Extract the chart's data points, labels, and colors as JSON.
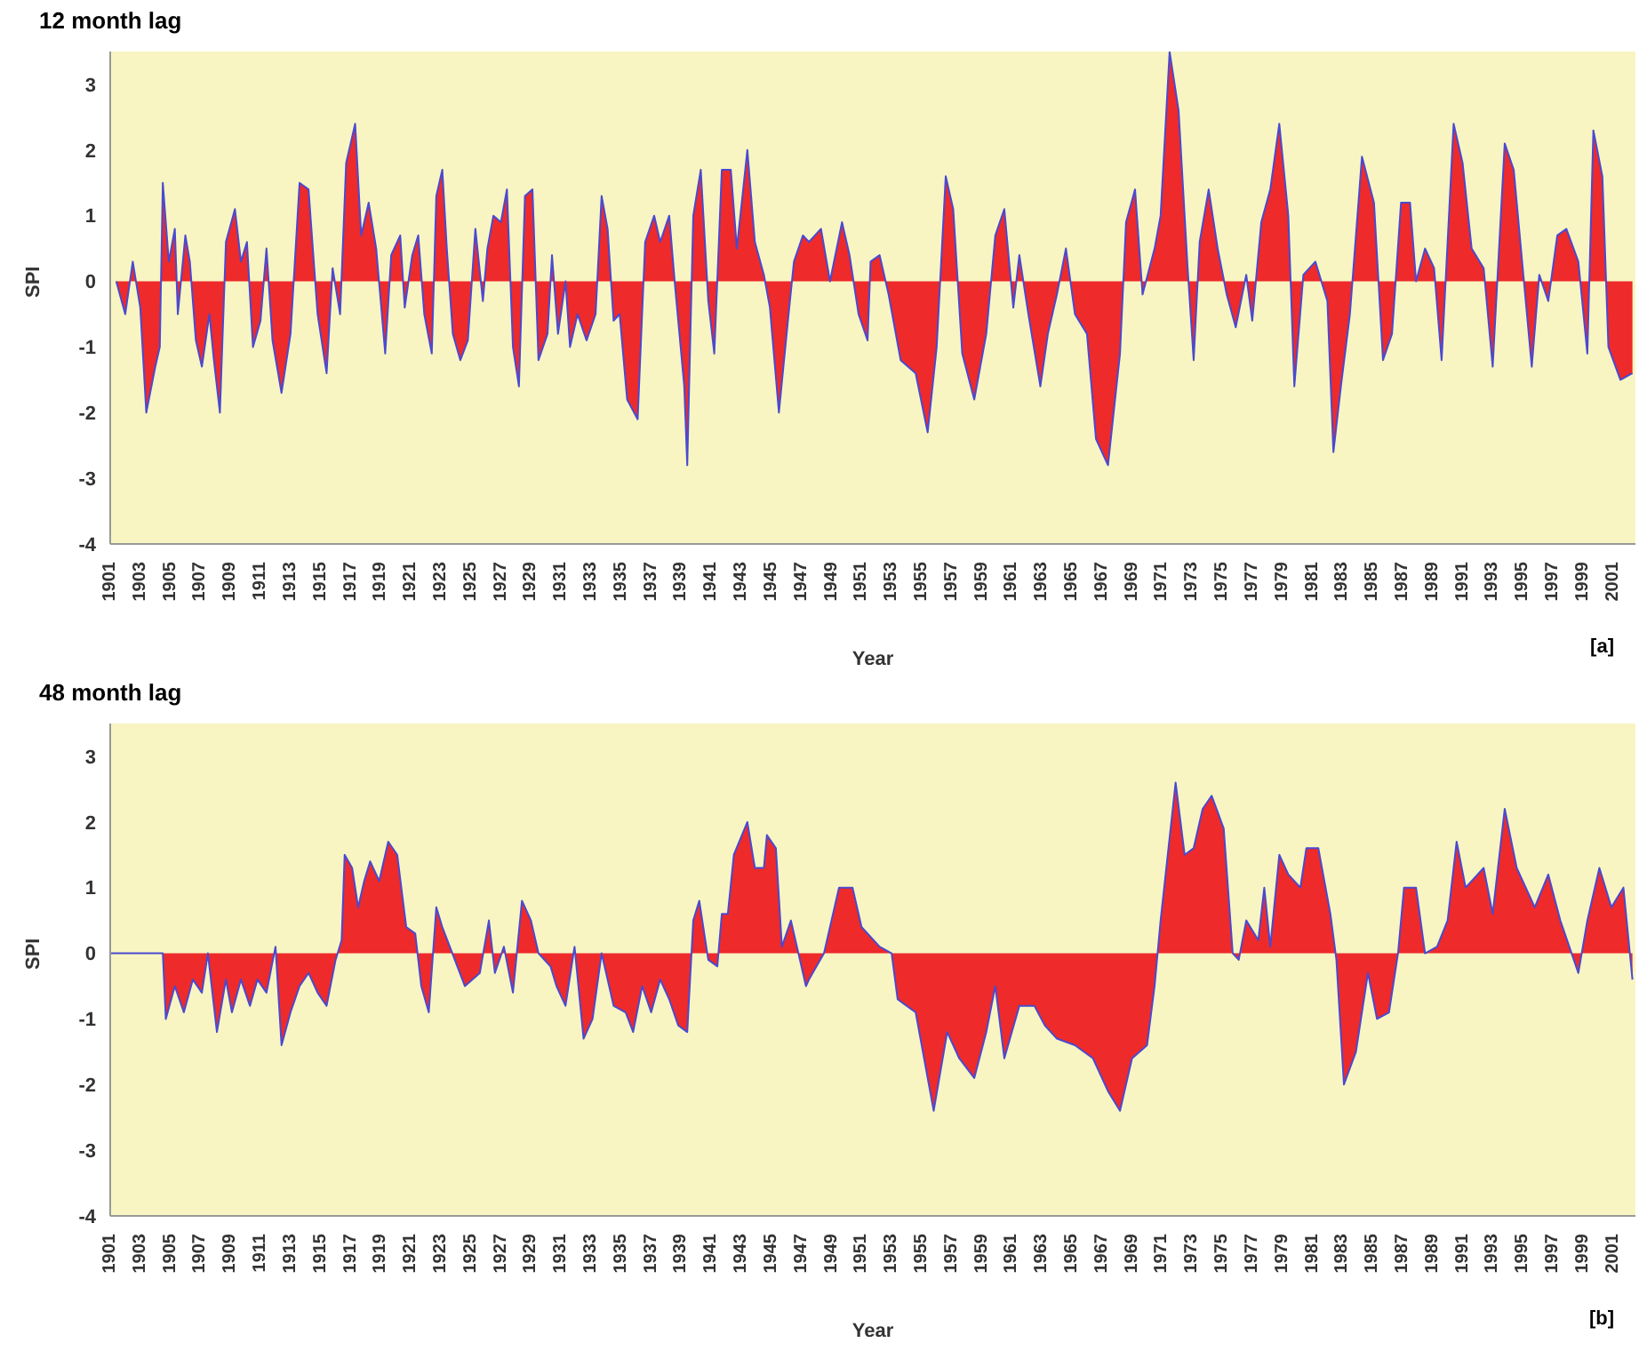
{
  "chart_data": [
    {
      "type": "area",
      "title": "12 month lag",
      "xlabel": "Year",
      "ylabel": "SPI",
      "color": "#ee2a2a",
      "annotations": [
        "[a]"
      ],
      "xlim": [
        1901,
        2002.5
      ],
      "ylim": [
        -4,
        3.5
      ],
      "yticks": [
        -4,
        -3,
        -2,
        -1,
        0,
        1,
        2,
        3
      ],
      "xticks": [
        1901,
        1903,
        1905,
        1907,
        1909,
        1911,
        1913,
        1915,
        1917,
        1919,
        1921,
        1923,
        1925,
        1927,
        1929,
        1931,
        1933,
        1935,
        1937,
        1939,
        1941,
        1943,
        1945,
        1947,
        1949,
        1951,
        1953,
        1955,
        1957,
        1959,
        1961,
        1963,
        1965,
        1967,
        1969,
        1971,
        1973,
        1975,
        1977,
        1979,
        1981,
        1983,
        1985,
        1987,
        1989,
        1991,
        1993,
        1995,
        1997,
        1999,
        2001
      ],
      "x": [
        1901.4,
        1902.0,
        1902.5,
        1903.0,
        1903.4,
        1904.0,
        1904.3,
        1904.5,
        1904.9,
        1905.3,
        1905.5,
        1906.0,
        1906.3,
        1906.7,
        1907.1,
        1907.6,
        1907.9,
        1908.3,
        1908.7,
        1909.3,
        1909.7,
        1910.1,
        1910.5,
        1911.0,
        1911.4,
        1911.8,
        1912.4,
        1913.0,
        1913.6,
        1914.2,
        1914.8,
        1915.4,
        1915.8,
        1916.3,
        1916.7,
        1917.3,
        1917.7,
        1918.2,
        1918.7,
        1919.3,
        1919.7,
        1920.3,
        1920.6,
        1921.1,
        1921.5,
        1921.9,
        1922.4,
        1922.7,
        1923.1,
        1923.4,
        1923.8,
        1924.3,
        1924.8,
        1925.3,
        1925.8,
        1926.1,
        1926.5,
        1927.0,
        1927.4,
        1927.8,
        1928.2,
        1928.6,
        1929.1,
        1929.5,
        1930.1,
        1930.4,
        1930.8,
        1931.3,
        1931.6,
        1932.1,
        1932.7,
        1933.3,
        1933.7,
        1934.1,
        1934.5,
        1934.9,
        1935.4,
        1936.1,
        1936.6,
        1937.2,
        1937.6,
        1938.2,
        1938.6,
        1939.2,
        1939.4,
        1939.8,
        1940.3,
        1940.8,
        1941.2,
        1941.7,
        1942.3,
        1942.7,
        1943.4,
        1943.9,
        1944.5,
        1944.9,
        1945.5,
        1946.1,
        1946.5,
        1947.1,
        1947.5,
        1948.3,
        1948.9,
        1949.7,
        1950.2,
        1950.8,
        1951.4,
        1951.6,
        1952.2,
        1952.8,
        1953.6,
        1954.6,
        1955.4,
        1956.0,
        1956.6,
        1957.1,
        1957.7,
        1958.5,
        1959.3,
        1959.9,
        1960.5,
        1961.1,
        1961.5,
        1962.1,
        1962.9,
        1963.4,
        1964.0,
        1964.6,
        1965.2,
        1966.0,
        1966.6,
        1967.4,
        1968.2,
        1968.6,
        1969.2,
        1969.7,
        1970.5,
        1970.9,
        1971.5,
        1972.1,
        1972.7,
        1973.1,
        1973.5,
        1974.1,
        1974.7,
        1975.3,
        1975.9,
        1976.6,
        1977.0,
        1977.6,
        1978.2,
        1978.8,
        1979.4,
        1979.8,
        1980.4,
        1981.2,
        1982.0,
        1982.4,
        1982.9,
        1983.5,
        1984.3,
        1985.1,
        1985.7,
        1986.3,
        1986.9,
        1987.5,
        1987.9,
        1988.5,
        1989.1,
        1989.6,
        1990.4,
        1991.0,
        1991.6,
        1992.4,
        1993.0,
        1993.8,
        1994.4,
        1995.0,
        1995.6,
        1996.1,
        1996.7,
        1997.3,
        1997.9,
        1998.7,
        1999.3,
        1999.7,
        2000.3,
        2000.7,
        2001.5,
        2002.3
      ],
      "values": [
        0,
        -0.5,
        0.3,
        -0.4,
        -2.0,
        -1.3,
        -1.0,
        1.5,
        0.3,
        0.8,
        -0.5,
        0.7,
        0.3,
        -0.9,
        -1.3,
        -0.5,
        -1.2,
        -2.0,
        0.6,
        1.1,
        0.3,
        0.6,
        -1.0,
        -0.6,
        0.5,
        -0.9,
        -1.7,
        -0.8,
        1.5,
        1.4,
        -0.5,
        -1.4,
        0.2,
        -0.5,
        1.8,
        2.4,
        0.7,
        1.2,
        0.5,
        -1.1,
        0.4,
        0.7,
        -0.4,
        0.4,
        0.7,
        -0.5,
        -1.1,
        1.3,
        1.7,
        0.5,
        -0.8,
        -1.2,
        -0.9,
        0.8,
        -0.3,
        0.5,
        1.0,
        0.9,
        1.4,
        -1.0,
        -1.6,
        1.3,
        1.4,
        -1.2,
        -0.8,
        0.4,
        -0.8,
        0,
        -1.0,
        -0.5,
        -0.9,
        -0.5,
        1.3,
        0.8,
        -0.6,
        -0.5,
        -1.8,
        -2.1,
        0.6,
        1.0,
        0.6,
        1.0,
        -0.1,
        -1.6,
        -2.8,
        1.0,
        1.7,
        -0.3,
        -1.1,
        1.7,
        1.7,
        0.5,
        2.0,
        0.6,
        0.1,
        -0.4,
        -2.0,
        -0.6,
        0.3,
        0.7,
        0.6,
        0.8,
        0,
        0.9,
        0.4,
        -0.5,
        -0.9,
        0.3,
        0.4,
        -0.2,
        -1.2,
        -1.4,
        -2.3,
        -1.0,
        1.6,
        1.1,
        -1.1,
        -1.8,
        -0.8,
        0.7,
        1.1,
        -0.4,
        0.4,
        -0.5,
        -1.6,
        -0.8,
        -0.2,
        0.5,
        -0.5,
        -0.8,
        -2.4,
        -2.8,
        -1.1,
        0.9,
        1.4,
        -0.2,
        0.5,
        1.0,
        3.5,
        2.6,
        0.2,
        -1.2,
        0.6,
        1.4,
        0.5,
        -0.2,
        -0.7,
        0.1,
        -0.6,
        0.9,
        1.4,
        2.4,
        1.0,
        -1.6,
        0.1,
        0.3,
        -0.3,
        -2.6,
        -1.6,
        -0.5,
        1.9,
        1.2,
        -1.2,
        -0.8,
        1.2,
        1.2,
        0,
        0.5,
        0.2,
        -1.2,
        2.4,
        1.8,
        0.5,
        0.2,
        -1.3,
        2.1,
        1.7,
        0.2,
        -1.3,
        0.1,
        -0.3,
        0.7,
        0.8,
        0.3,
        -1.1,
        2.3,
        1.6,
        -1.0,
        -1.5,
        -1.4
      ]
    },
    {
      "type": "area",
      "title": "48 month lag",
      "xlabel": "Year",
      "ylabel": "SPI",
      "color": "#ee2a2a",
      "annotations": [
        "[b]"
      ],
      "xlim": [
        1901,
        2002.5
      ],
      "ylim": [
        -4,
        3.5
      ],
      "yticks": [
        -4,
        -3,
        -2,
        -1,
        0,
        1,
        2,
        3
      ],
      "xticks": [
        1901,
        1903,
        1905,
        1907,
        1909,
        1911,
        1913,
        1915,
        1917,
        1919,
        1921,
        1923,
        1925,
        1927,
        1929,
        1931,
        1933,
        1935,
        1937,
        1939,
        1941,
        1943,
        1945,
        1947,
        1949,
        1951,
        1953,
        1955,
        1957,
        1959,
        1961,
        1963,
        1965,
        1967,
        1969,
        1971,
        1973,
        1975,
        1977,
        1979,
        1981,
        1983,
        1985,
        1987,
        1989,
        1991,
        1993,
        1995,
        1997,
        1999,
        2001
      ],
      "x": [
        1901.0,
        1904.5,
        1904.7,
        1905.3,
        1905.9,
        1906.5,
        1907.1,
        1907.5,
        1908.1,
        1908.7,
        1909.1,
        1909.7,
        1910.3,
        1910.8,
        1911.4,
        1912.0,
        1912.4,
        1913.0,
        1913.6,
        1914.2,
        1914.8,
        1915.4,
        1916.0,
        1916.4,
        1916.6,
        1917.1,
        1917.5,
        1917.9,
        1918.3,
        1918.9,
        1919.5,
        1920.1,
        1920.7,
        1921.3,
        1921.7,
        1922.2,
        1922.7,
        1923.1,
        1923.6,
        1924.6,
        1925.6,
        1926.2,
        1926.6,
        1927.2,
        1927.8,
        1928.4,
        1929.0,
        1929.5,
        1930.3,
        1930.7,
        1931.3,
        1931.9,
        1932.5,
        1933.1,
        1933.7,
        1934.5,
        1935.3,
        1935.8,
        1936.4,
        1937.0,
        1937.6,
        1938.2,
        1938.8,
        1939.4,
        1939.8,
        1940.2,
        1940.8,
        1941.4,
        1941.7,
        1942.1,
        1942.5,
        1943.4,
        1943.9,
        1944.5,
        1944.7,
        1945.3,
        1945.7,
        1946.3,
        1946.9,
        1947.3,
        1947.5,
        1948.5,
        1949.5,
        1950.4,
        1951.0,
        1952.2,
        1953.0,
        1953.4,
        1954.6,
        1955.8,
        1956.7,
        1957.5,
        1958.5,
        1959.3,
        1959.9,
        1960.5,
        1961.5,
        1962.5,
        1963.2,
        1964.0,
        1965.2,
        1966.4,
        1967.4,
        1968.2,
        1969.0,
        1970.0,
        1970.5,
        1970.9,
        1971.9,
        1972.5,
        1973.1,
        1973.7,
        1974.3,
        1975.1,
        1975.7,
        1976.1,
        1976.6,
        1977.4,
        1977.8,
        1978.2,
        1978.8,
        1979.4,
        1980.2,
        1980.6,
        1981.4,
        1982.2,
        1982.6,
        1983.1,
        1983.9,
        1984.7,
        1985.3,
        1986.1,
        1986.7,
        1987.1,
        1987.9,
        1988.5,
        1989.3,
        1990.0,
        1990.6,
        1991.2,
        1992.4,
        1993.0,
        1993.8,
        1994.6,
        1995.8,
        1996.7,
        1997.5,
        1998.7,
        1999.3,
        2000.1,
        2000.9,
        2001.7,
        2002.3
      ],
      "values": [
        0,
        0,
        -1.0,
        -0.5,
        -0.9,
        -0.4,
        -0.6,
        0,
        -1.2,
        -0.4,
        -0.9,
        -0.4,
        -0.8,
        -0.4,
        -0.6,
        0.1,
        -1.4,
        -0.9,
        -0.5,
        -0.3,
        -0.6,
        -0.8,
        -0.1,
        0.2,
        1.5,
        1.3,
        0.7,
        1.1,
        1.4,
        1.1,
        1.7,
        1.5,
        0.4,
        0.3,
        -0.5,
        -0.9,
        0.7,
        0.4,
        0.1,
        -0.5,
        -0.3,
        0.5,
        -0.3,
        0.1,
        -0.6,
        0.8,
        0.5,
        0,
        -0.2,
        -0.5,
        -0.8,
        0.1,
        -1.3,
        -1.0,
        0,
        -0.8,
        -0.9,
        -1.2,
        -0.5,
        -0.9,
        -0.4,
        -0.7,
        -1.1,
        -1.2,
        0.5,
        0.8,
        -0.1,
        -0.2,
        0.6,
        0.6,
        1.5,
        2.0,
        1.3,
        1.3,
        1.8,
        1.6,
        0.1,
        0.5,
        -0.1,
        -0.5,
        -0.4,
        0,
        1.0,
        1.0,
        0.4,
        0.1,
        0,
        -0.7,
        -0.9,
        -2.4,
        -1.2,
        -1.6,
        -1.9,
        -1.2,
        -0.5,
        -1.6,
        -0.8,
        -0.8,
        -1.1,
        -1.3,
        -1.4,
        -1.6,
        -2.1,
        -2.4,
        -1.6,
        -1.4,
        -0.5,
        0.5,
        2.6,
        1.5,
        1.6,
        2.2,
        2.4,
        1.9,
        0,
        -0.1,
        0.5,
        0.2,
        1.0,
        0.1,
        1.5,
        1.2,
        1.0,
        1.6,
        1.6,
        0.6,
        -0.1,
        -2.0,
        -1.5,
        -0.3,
        -1.0,
        -0.9,
        0,
        1.0,
        1.0,
        0,
        0.1,
        0.5,
        1.7,
        1.0,
        1.3,
        0.6,
        2.2,
        1.3,
        0.7,
        1.2,
        0.5,
        -0.3,
        0.5,
        1.3,
        0.7,
        1.0,
        -0.4
      ]
    }
  ]
}
